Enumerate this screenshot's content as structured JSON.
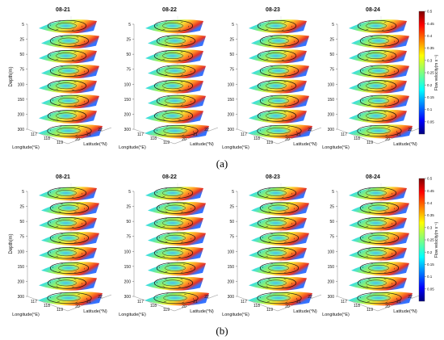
{
  "figure": {
    "rows": [
      {
        "caption": "(a)",
        "panels": [
          "08-21",
          "08-22",
          "08-23",
          "08-24"
        ]
      },
      {
        "caption": "(b)",
        "panels": [
          "08-21",
          "08-22",
          "08-23",
          "08-24"
        ]
      }
    ]
  },
  "chart_data": {
    "type": "3d-stacked-contour-slices",
    "panel_titles": [
      "08-21",
      "08-22",
      "08-23",
      "08-24"
    ],
    "xlabel": "Longitude(°E)",
    "ylabel": "Latitude(°N)",
    "zlabel": "Depth(m)",
    "x_ticks": [
      "117",
      "118",
      "119"
    ],
    "y_ticks": [
      "20",
      "21",
      "22"
    ],
    "z_ticks": [
      "5",
      "25",
      "50",
      "75",
      "100",
      "150",
      "200",
      "300"
    ],
    "depth_levels_m": [
      5,
      25,
      50,
      75,
      100,
      150,
      200,
      300
    ],
    "colorbar": {
      "label": "Flow velocity(m s⁻¹)",
      "ticks": [
        "0.05",
        "0.1",
        "0.15",
        "0.2",
        "0.25",
        "0.3",
        "0.35",
        "0.4",
        "0.45",
        "0.5"
      ],
      "range": [
        0,
        0.5
      ],
      "colormap": "jet",
      "colors": [
        "#00007f",
        "#0000ff",
        "#007fff",
        "#00ffff",
        "#7fff7f",
        "#ffff00",
        "#ff7f00",
        "#ff0000",
        "#7f0000"
      ]
    }
  }
}
